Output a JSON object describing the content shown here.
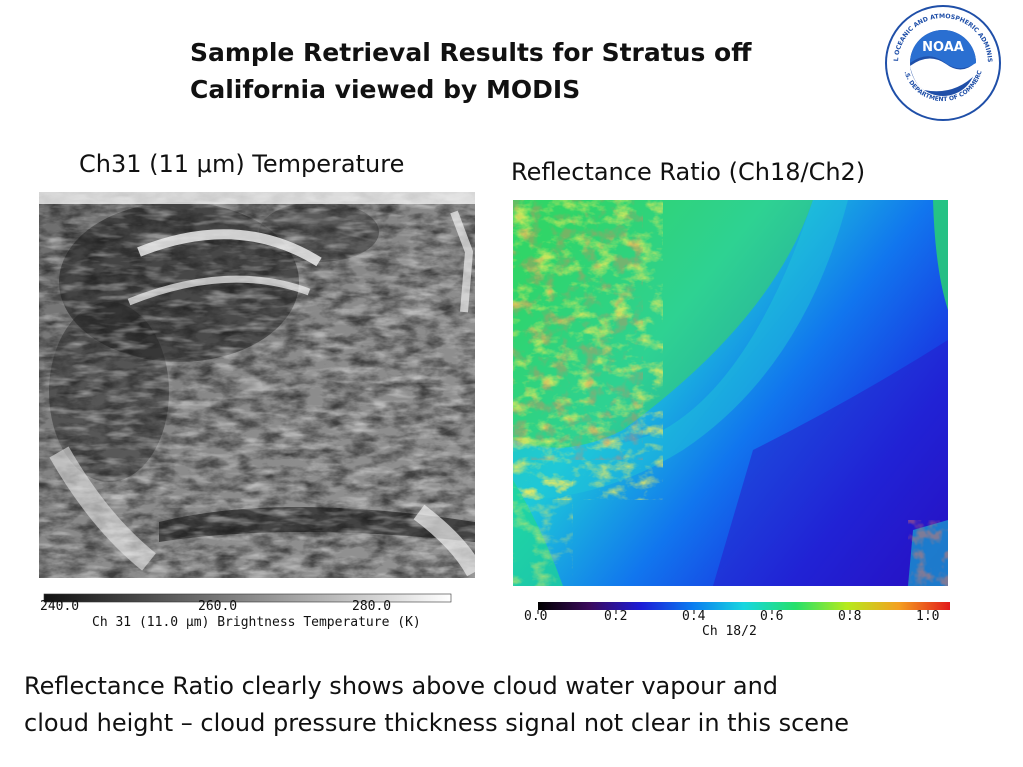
{
  "slide": {
    "title_line1": "Sample Retrieval Results for Stratus off",
    "title_line2": "California viewed by MODIS",
    "logo": {
      "text": "NOAA",
      "ring_text": "NATIONAL OCEANIC AND ATMOSPHERIC ADMINISTRATION",
      "bottom_text": "U.S. DEPARTMENT OF COMMERCE",
      "colors": {
        "outer": "#1f4fa8",
        "inner": "#2a6fd1",
        "bird": "#ffffff"
      }
    },
    "left_panel": {
      "label": "Ch31 (11 μm) Temperature",
      "colorbar": {
        "ticks": [
          "240.0",
          "260.0",
          "280.0"
        ],
        "label": "Ch 31 (11.0 μm) Brightness Temperature (K)",
        "colors": [
          "#111111",
          "#ffffff"
        ]
      }
    },
    "right_panel": {
      "label": "Reflectance Ratio (Ch18/Ch2)",
      "colorbar": {
        "ticks": [
          "0.0",
          "0.2",
          "0.4",
          "0.6",
          "0.8",
          "1.0"
        ],
        "label": "Ch 18/2",
        "colors": [
          "#000000",
          "#3b0a5c",
          "#1c1cd6",
          "#0a7cf0",
          "#17d6e0",
          "#25e06a",
          "#b6ea1c",
          "#f4a020",
          "#e21a1a"
        ]
      }
    },
    "caption_line1": "Reflectance Ratio clearly shows above cloud water vapour and",
    "caption_line2": "cloud height – cloud pressure thickness signal not clear in this scene"
  }
}
